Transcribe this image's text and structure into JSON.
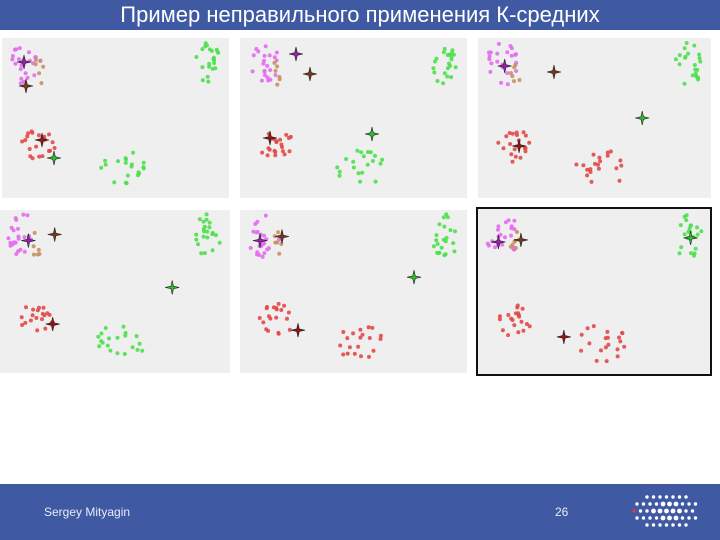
{
  "slide": {
    "title": "Пример неправильного применения К-средних",
    "author": "Sergey Mityagin",
    "page_number": "26"
  },
  "colors": {
    "title_bar": "#3f5aa2",
    "panel_bg": "#efefef",
    "cluster_pink": "#e36cf0",
    "cluster_green": "#4de04d",
    "cluster_red": "#e24848",
    "cluster_brown": "#c89060",
    "centroid_purple": "#9b1fb0",
    "centroid_brown": "#7a3a18",
    "centroid_red": "#9a1010",
    "centroid_green": "#2cc02c"
  },
  "panels_count": 6,
  "selected_panel": 6,
  "logo_icon": "dot-grid-logo-icon"
}
